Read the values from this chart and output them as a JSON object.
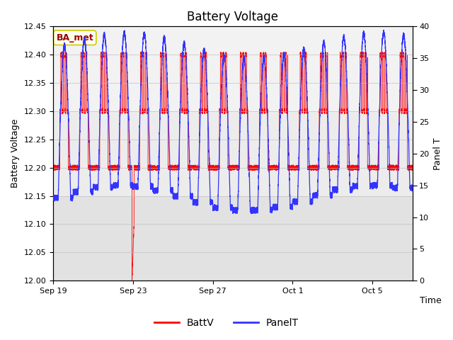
{
  "title": "Battery Voltage",
  "xlabel": "Time",
  "ylabel_left": "Battery Voltage",
  "ylabel_right": "Panel T",
  "ylim_left": [
    12.0,
    12.45
  ],
  "ylim_right": [
    0,
    40
  ],
  "yticks_left": [
    12.0,
    12.05,
    12.1,
    12.15,
    12.2,
    12.25,
    12.3,
    12.35,
    12.4,
    12.45
  ],
  "yticks_right": [
    0,
    5,
    10,
    15,
    20,
    25,
    30,
    35,
    40
  ],
  "xtick_positions": [
    0,
    4,
    8,
    12,
    16
  ],
  "xtick_labels": [
    "Sep 19",
    "Sep 23",
    "Sep 27",
    "Oct 1",
    "Oct 5"
  ],
  "batt_color": "#FF0000",
  "panel_color": "#3333FF",
  "bg_color": "#FFFFFF",
  "plot_bg_color": "#F2F2F2",
  "legend_labels": [
    "BattV",
    "PanelT"
  ],
  "annotation_text": "BA_met",
  "annotation_box_color": "#FFFFF0",
  "annotation_border_color": "#CCCC00",
  "annotation_text_color": "#990000",
  "title_fontsize": 12,
  "label_fontsize": 9,
  "tick_fontsize": 8,
  "legend_fontsize": 10,
  "total_days": 18
}
